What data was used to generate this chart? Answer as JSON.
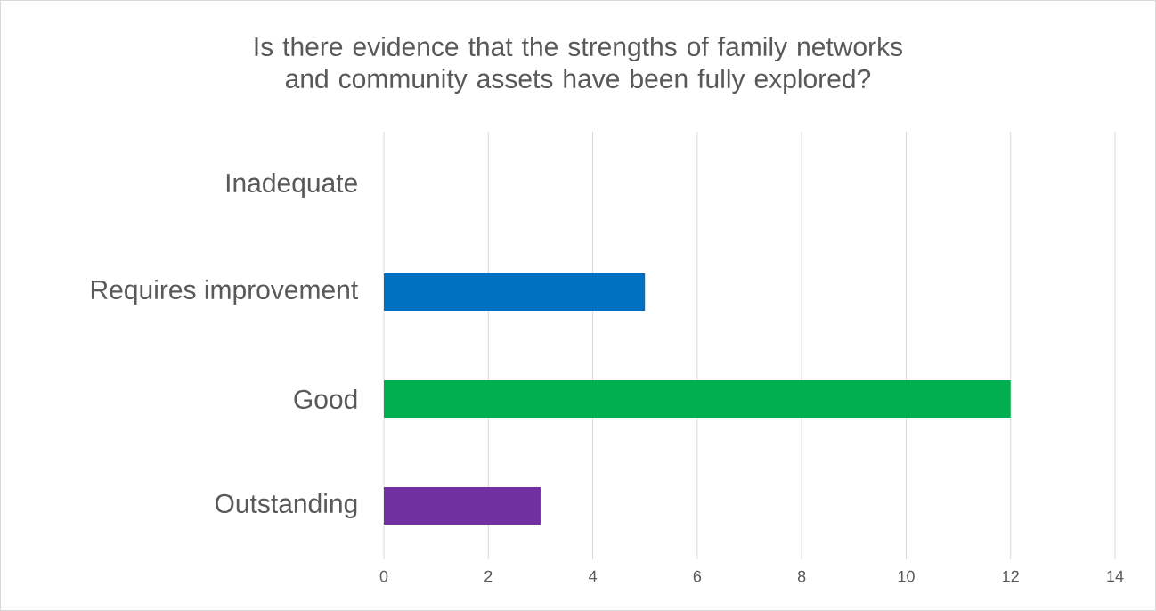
{
  "chart_data": {
    "type": "bar",
    "orientation": "horizontal",
    "title": "Is there evidence that the strengths of family networks and community assets have been fully explored?",
    "categories": [
      "Inadequate",
      "Requires improvement",
      "Good",
      "Outstanding"
    ],
    "values": [
      0,
      5,
      12,
      3
    ],
    "colors": [
      "#c00000",
      "#0070c0",
      "#00b050",
      "#7030a0"
    ],
    "xlim": [
      0,
      14
    ],
    "xticks": [
      0,
      2,
      4,
      6,
      8,
      10,
      12,
      14
    ],
    "grid": "x"
  }
}
